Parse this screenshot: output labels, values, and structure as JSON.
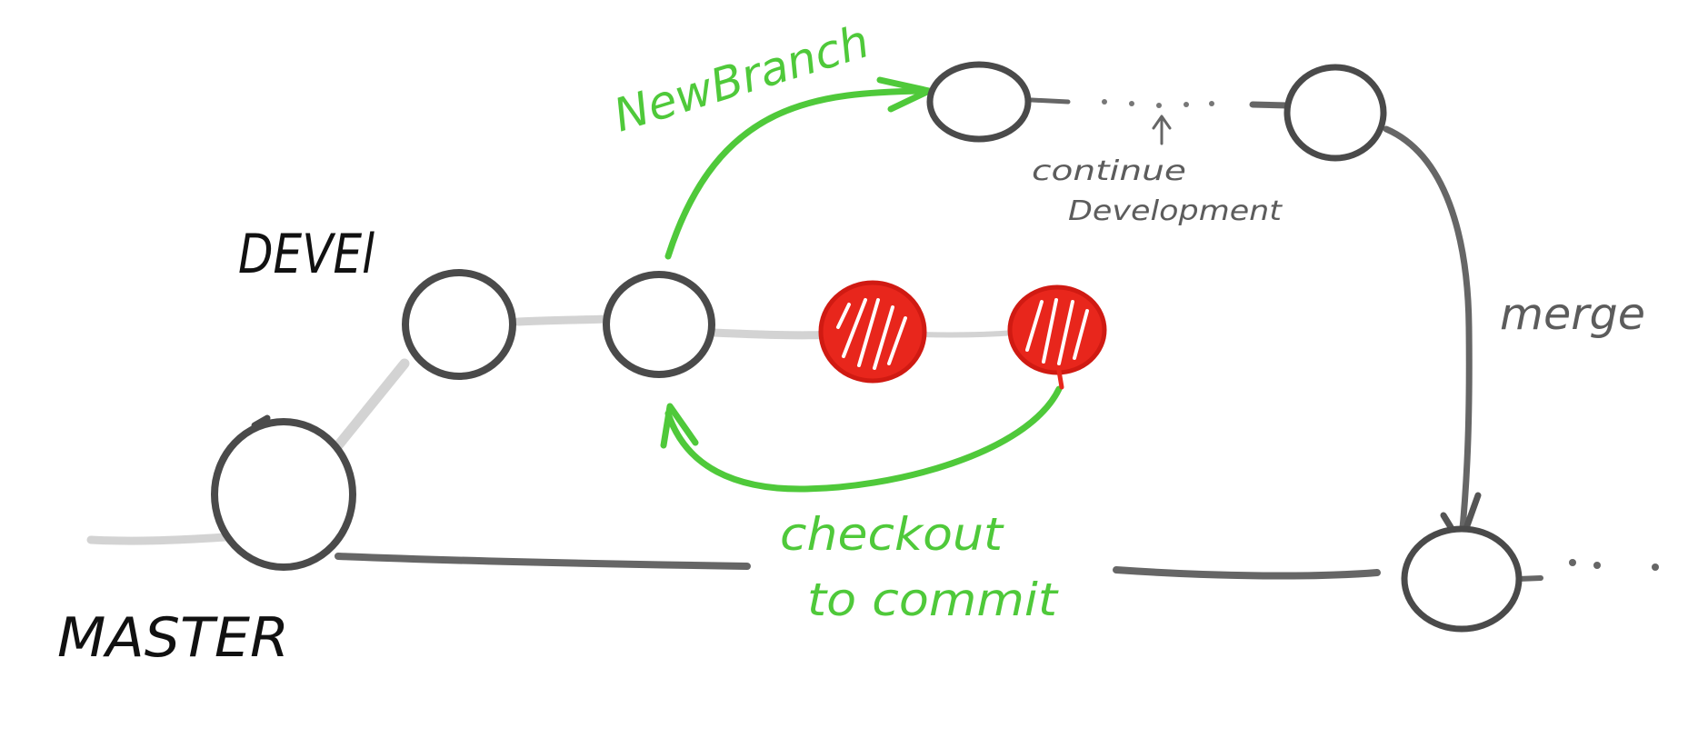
{
  "diagram": {
    "labels": {
      "devel": "DEVEl",
      "master": "MASTER",
      "new_branch": "NewBranch",
      "continue_line1": "continue",
      "continue_line2": "Development",
      "merge": "merge",
      "checkout_line1": "checkout",
      "checkout_line2": "to commit"
    },
    "colors": {
      "line_light": "#d3d3d3",
      "line_dark": "#666666",
      "node_stroke": "#4a4a4a",
      "node_fill": "#ffffff",
      "discarded_commit": "#e8261c",
      "green_arrow": "#4fc93a",
      "grey_text": "#5c5c5c",
      "black_text": "#111111"
    }
  }
}
